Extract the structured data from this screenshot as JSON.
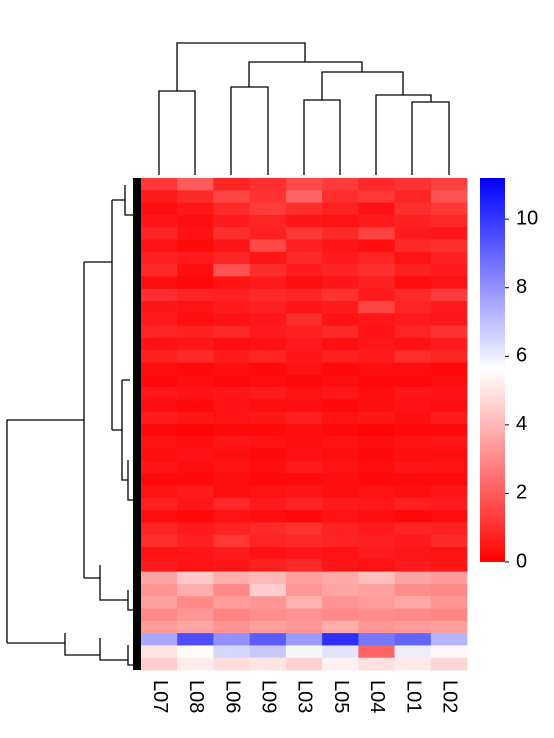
{
  "chart_data": {
    "type": "heatmap",
    "categories": [
      "L07",
      "L08",
      "L06",
      "L09",
      "L03",
      "L05",
      "L04",
      "L01",
      "L02"
    ],
    "colors": [
      "#ff0000",
      "#ffffff",
      "#0000ff"
    ],
    "zlim": [
      0,
      11.2
    ],
    "zticks": [
      0,
      2,
      4,
      6,
      8,
      10
    ],
    "z": [
      [
        1.2,
        2.0,
        0.8,
        1.0,
        1.6,
        1.3,
        0.9,
        1.1,
        1.4
      ],
      [
        0.6,
        0.9,
        1.5,
        1.1,
        2.2,
        1.0,
        1.2,
        0.8,
        1.8
      ],
      [
        0.3,
        0.5,
        0.9,
        1.3,
        1.0,
        0.7,
        0.4,
        1.0,
        1.2
      ],
      [
        0.5,
        0.3,
        0.6,
        0.8,
        0.5,
        0.4,
        0.6,
        0.7,
        0.9
      ],
      [
        0.8,
        0.4,
        1.0,
        0.7,
        1.2,
        0.9,
        1.4,
        0.6,
        0.5
      ],
      [
        0.4,
        0.2,
        0.5,
        1.6,
        0.7,
        0.5,
        0.3,
        0.9,
        1.0
      ],
      [
        0.7,
        0.6,
        0.8,
        0.5,
        0.9,
        0.6,
        0.8,
        0.4,
        0.7
      ],
      [
        0.9,
        0.3,
        1.8,
        1.0,
        0.6,
        0.8,
        1.0,
        0.7,
        0.6
      ],
      [
        0.3,
        0.2,
        0.4,
        0.6,
        0.3,
        0.5,
        0.7,
        0.3,
        0.4
      ],
      [
        1.0,
        0.8,
        0.7,
        0.9,
        0.8,
        1.1,
        0.6,
        0.9,
        1.3
      ],
      [
        0.5,
        0.4,
        0.6,
        0.7,
        0.5,
        0.6,
        1.5,
        0.8,
        0.6
      ],
      [
        0.6,
        0.3,
        0.4,
        0.5,
        1.0,
        0.4,
        0.5,
        0.6,
        0.5
      ],
      [
        0.8,
        0.7,
        0.9,
        0.6,
        0.7,
        0.9,
        0.4,
        0.8,
        1.1
      ],
      [
        0.4,
        0.5,
        0.3,
        0.4,
        0.6,
        0.3,
        0.5,
        0.4,
        0.6
      ],
      [
        0.7,
        0.9,
        0.6,
        0.8,
        0.5,
        0.7,
        0.6,
        1.0,
        0.8
      ],
      [
        0.3,
        0.2,
        0.3,
        0.2,
        0.4,
        0.2,
        0.3,
        0.3,
        0.2
      ],
      [
        0.2,
        0.3,
        0.2,
        0.3,
        0.2,
        0.3,
        0.2,
        0.2,
        0.3
      ],
      [
        0.5,
        0.4,
        0.5,
        0.6,
        0.4,
        0.5,
        0.3,
        0.5,
        0.4
      ],
      [
        0.3,
        0.2,
        0.4,
        0.3,
        0.3,
        0.2,
        0.3,
        0.4,
        0.3
      ],
      [
        0.6,
        0.5,
        0.4,
        0.5,
        0.7,
        0.4,
        0.5,
        0.3,
        0.6
      ],
      [
        0.2,
        0.1,
        0.2,
        0.2,
        0.3,
        0.2,
        0.1,
        0.2,
        0.2
      ],
      [
        0.4,
        0.3,
        0.5,
        0.4,
        0.3,
        0.4,
        0.3,
        0.4,
        0.5
      ],
      [
        0.3,
        0.4,
        0.3,
        0.2,
        0.4,
        0.3,
        0.2,
        0.3,
        0.3
      ],
      [
        0.5,
        0.3,
        0.4,
        0.3,
        0.6,
        0.4,
        0.3,
        0.5,
        0.4
      ],
      [
        0.2,
        0.2,
        0.3,
        0.2,
        0.2,
        0.3,
        0.2,
        0.2,
        0.2
      ],
      [
        0.4,
        0.6,
        0.3,
        0.4,
        0.5,
        0.3,
        0.4,
        0.3,
        0.5
      ],
      [
        0.7,
        0.5,
        0.9,
        0.6,
        0.8,
        0.6,
        0.5,
        0.7,
        0.6
      ],
      [
        0.3,
        0.2,
        0.4,
        0.3,
        0.2,
        0.4,
        0.3,
        0.2,
        0.3
      ],
      [
        0.8,
        0.6,
        0.7,
        0.9,
        1.1,
        0.7,
        0.6,
        0.8,
        0.7
      ],
      [
        1.0,
        0.7,
        1.2,
        0.8,
        0.9,
        0.8,
        0.7,
        0.6,
        0.9
      ],
      [
        0.4,
        0.5,
        0.6,
        0.4,
        0.5,
        0.4,
        0.6,
        0.5,
        0.4
      ],
      [
        0.6,
        0.4,
        0.5,
        0.7,
        0.9,
        0.5,
        0.4,
        0.6,
        0.5
      ],
      [
        3.6,
        4.4,
        3.8,
        4.0,
        3.5,
        3.7,
        4.2,
        3.6,
        3.4
      ],
      [
        3.2,
        3.8,
        3.0,
        4.5,
        3.3,
        3.6,
        3.5,
        3.1,
        3.0
      ],
      [
        3.5,
        3.0,
        3.4,
        3.3,
        3.9,
        3.2,
        3.4,
        3.7,
        3.3
      ],
      [
        3.0,
        3.3,
        2.9,
        3.1,
        3.2,
        3.0,
        3.1,
        3.0,
        2.9
      ],
      [
        3.4,
        3.6,
        3.2,
        3.5,
        3.3,
        3.8,
        3.3,
        3.4,
        3.5
      ],
      [
        7.5,
        9.5,
        8.0,
        9.2,
        7.8,
        10.2,
        8.6,
        9.0,
        7.2
      ],
      [
        5.0,
        5.5,
        6.5,
        6.8,
        5.8,
        6.2,
        2.2,
        6.0,
        5.4
      ],
      [
        4.5,
        5.2,
        4.8,
        5.0,
        4.6,
        5.3,
        4.9,
        5.1,
        4.7
      ]
    ]
  }
}
